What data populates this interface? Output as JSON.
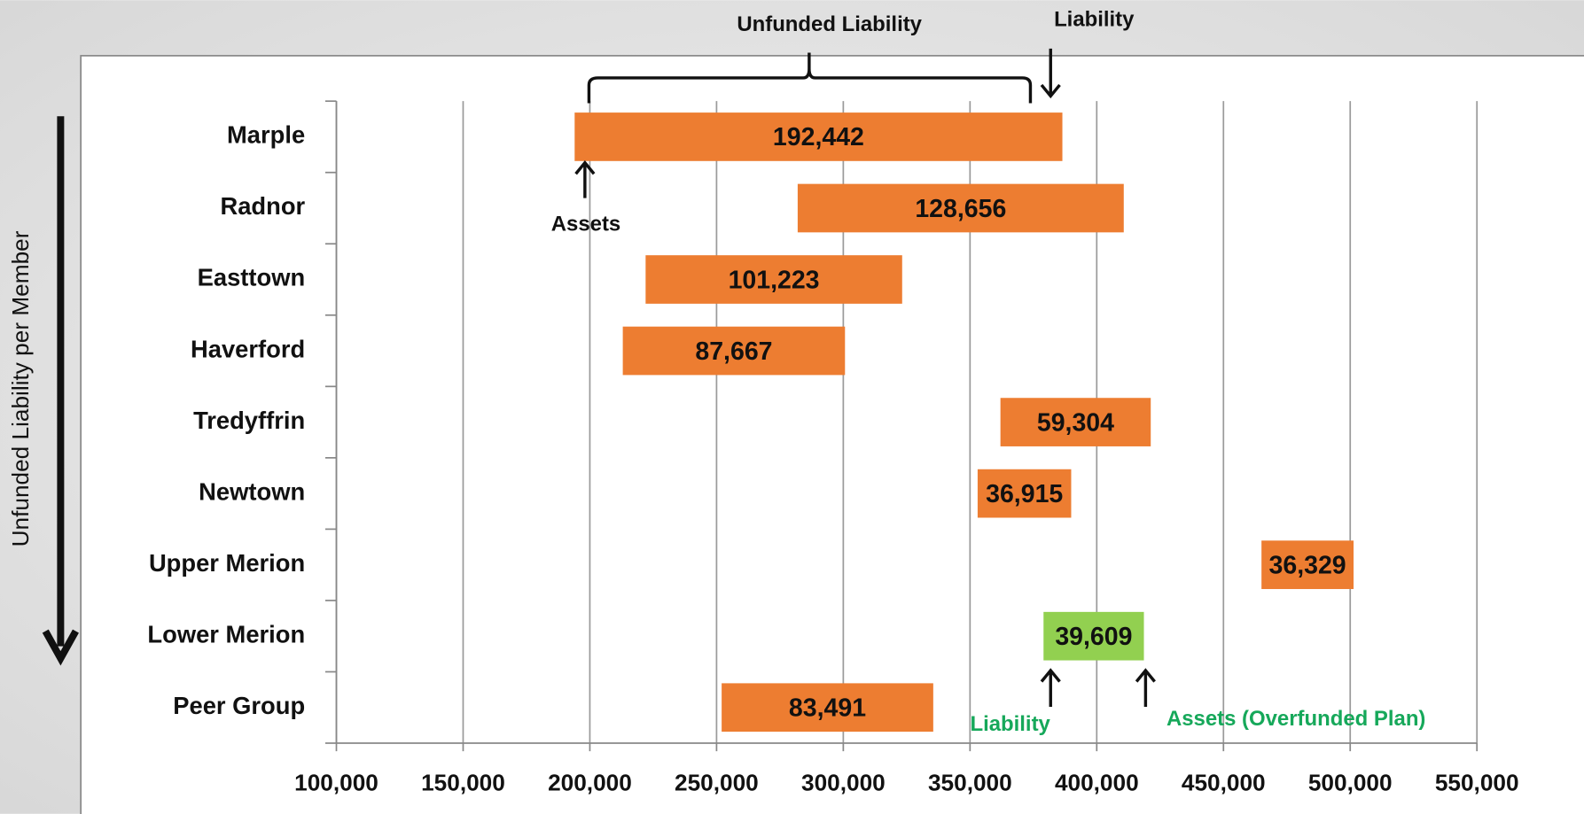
{
  "chart_data": {
    "type": "floating-bar",
    "categories": [
      "Marple",
      "Radnor",
      "Easttown",
      "Haverford",
      "Tredyffrin",
      "Newtown",
      "Upper Merion",
      "Lower Merion",
      "Peer Group"
    ],
    "starts": [
      194000,
      282000,
      222000,
      213000,
      362000,
      353000,
      465000,
      379000,
      252000
    ],
    "values": [
      192442,
      128656,
      101223,
      87667,
      59304,
      36915,
      36329,
      39609,
      83491
    ],
    "value_labels": [
      "192,442",
      "128,656",
      "101,223",
      "87,667",
      "59,304",
      "36,915",
      "36,329",
      "39,609",
      "83,491"
    ],
    "colors": [
      "#ed7d31",
      "#ed7d31",
      "#ed7d31",
      "#ed7d31",
      "#ed7d31",
      "#ed7d31",
      "#ed7d31",
      "#92d050",
      "#ed7d31"
    ],
    "xlim": [
      100000,
      550000
    ],
    "xticks": [
      {
        "value": 100000,
        "label": "100,000"
      },
      {
        "value": 150000,
        "label": "150,000"
      },
      {
        "value": 200000,
        "label": "200,000"
      },
      {
        "value": 250000,
        "label": "250,000"
      },
      {
        "value": 300000,
        "label": "300,000"
      },
      {
        "value": 350000,
        "label": "350,000"
      },
      {
        "value": 400000,
        "label": "400,000"
      },
      {
        "value": 450000,
        "label": "450,000"
      },
      {
        "value": 500000,
        "label": "500,000"
      },
      {
        "value": 550000,
        "label": "550,000"
      }
    ],
    "grid": true,
    "y_label": "Unfunded Liability per Member",
    "annotations": [
      {
        "text": "Unfunded Liability",
        "color": "#111111"
      },
      {
        "text": "Liability",
        "color": "#111111"
      },
      {
        "text": "Assets",
        "color": "#111111"
      },
      {
        "text": "Liability",
        "color": "#16a85a"
      },
      {
        "text": "Assets (Overfunded Plan)",
        "color": "#16a85a"
      }
    ]
  }
}
